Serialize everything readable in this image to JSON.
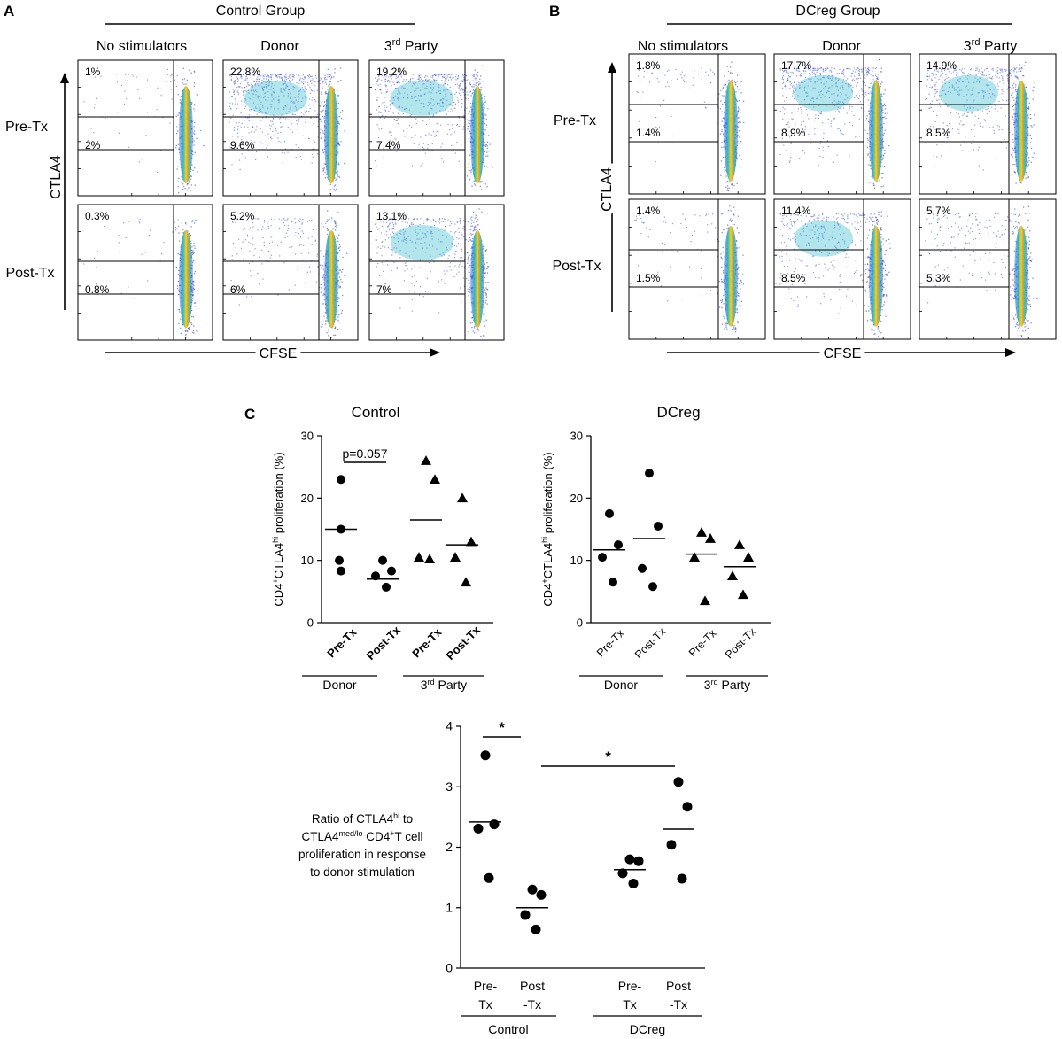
{
  "panels": {
    "A": {
      "letter": "A",
      "group_title": "Control Group",
      "columns": [
        "No stimulators",
        "Donor",
        "3rd Party"
      ],
      "rows": [
        "Pre-Tx",
        "Post-Tx"
      ],
      "y_axis": "CTLA4",
      "x_axis": "CFSE",
      "gates": [
        [
          {
            "hi": "1%",
            "med": "2%"
          },
          {
            "hi": "22.8%",
            "med": "9.6%"
          },
          {
            "hi": "19.2%",
            "med": "7.4%"
          }
        ],
        [
          {
            "hi": "0.3%",
            "med": "0.8%"
          },
          {
            "hi": "5.2%",
            "med": "6%"
          },
          {
            "hi": "13.1%",
            "med": "7%"
          }
        ]
      ]
    },
    "B": {
      "letter": "B",
      "group_title": "DCreg Group",
      "columns": [
        "No stimulators",
        "Donor",
        "3rd Party"
      ],
      "rows": [
        "Pre-Tx",
        "Post-Tx"
      ],
      "y_axis": "CTLA4",
      "x_axis": "CFSE",
      "gates": [
        [
          {
            "hi": "1.8%",
            "med": "1.4%"
          },
          {
            "hi": "17.7%",
            "med": "8.9%"
          },
          {
            "hi": "14.9%",
            "med": "8.5%"
          }
        ],
        [
          {
            "hi": "1.4%",
            "med": "1.5%"
          },
          {
            "hi": "11.4%",
            "med": "8.5%"
          },
          {
            "hi": "5.7%",
            "med": "5.3%"
          }
        ]
      ]
    },
    "C": {
      "letter": "C"
    }
  },
  "chart_data": [
    {
      "type": "scatter",
      "title": "Control",
      "ylabel": "CD4+CTLA4hi proliferation (%)",
      "ylim": [
        0,
        30
      ],
      "yticks": [
        "0",
        "10",
        "20",
        "30"
      ],
      "categories": [
        "Pre-Tx",
        "Post-Tx",
        "Pre-Tx",
        "Post-Tx"
      ],
      "group_labels": [
        "Donor",
        "3rd Party"
      ],
      "series": [
        {
          "name": "Donor Pre-Tx",
          "marker": "circle",
          "values": [
            23,
            15,
            10,
            8.3
          ],
          "mean": 15
        },
        {
          "name": "Donor Post-Tx",
          "marker": "circle",
          "values": [
            10,
            8.3,
            7.5,
            5.7
          ],
          "mean": 7
        },
        {
          "name": "3rd Party Pre-Tx",
          "marker": "triangle",
          "values": [
            26,
            23,
            10.5,
            10.2
          ],
          "mean": 16.5
        },
        {
          "name": "3rd Party Post-Tx",
          "marker": "triangle",
          "values": [
            20,
            13,
            10.5,
            6.5
          ],
          "mean": 12.5
        }
      ],
      "annotations": [
        {
          "text": "p=0.057",
          "between": [
            0,
            1
          ]
        }
      ]
    },
    {
      "type": "scatter",
      "title": "DCreg",
      "ylabel": "CD4+CTLA4hi proliferation (%)",
      "ylim": [
        0,
        30
      ],
      "yticks": [
        "0",
        "10",
        "20",
        "30"
      ],
      "categories": [
        "Pre-Tx",
        "Post-Tx",
        "Pre-Tx",
        "Post-Tx"
      ],
      "group_labels": [
        "Donor",
        "3rd Party"
      ],
      "series": [
        {
          "name": "Donor Pre-Tx",
          "marker": "circle",
          "values": [
            17.5,
            12.5,
            10.5,
            6.5
          ],
          "mean": 11.7
        },
        {
          "name": "Donor Post-Tx",
          "marker": "circle",
          "values": [
            24,
            15.5,
            8.7,
            5.8
          ],
          "mean": 13.5
        },
        {
          "name": "3rd Party Pre-Tx",
          "marker": "triangle",
          "values": [
            14.5,
            13.5,
            10.5,
            3.5
          ],
          "mean": 11
        },
        {
          "name": "3rd Party Post-Tx",
          "marker": "triangle",
          "values": [
            12.5,
            10.5,
            7.5,
            4.5
          ],
          "mean": 9
        }
      ]
    },
    {
      "type": "scatter",
      "ylabel": "Ratio of CTLA4hi to CTLA4med/lo CD4+T cell proliferation in response to donor stimulation",
      "ylim": [
        0,
        4
      ],
      "yticks": [
        "0",
        "1",
        "2",
        "3",
        "4"
      ],
      "categories": [
        "Pre-Tx",
        "Post-Tx",
        "Pre-Tx",
        "Post-Tx"
      ],
      "group_labels": [
        "Control",
        "DCreg"
      ],
      "series": [
        {
          "name": "Control Pre-Tx",
          "marker": "circle",
          "values": [
            3.52,
            2.38,
            2.31,
            1.49
          ],
          "mean": 2.42
        },
        {
          "name": "Control Post-Tx",
          "marker": "circle",
          "values": [
            1.3,
            1.21,
            0.88,
            0.64
          ],
          "mean": 1.0
        },
        {
          "name": "DCreg Pre-Tx",
          "marker": "circle",
          "values": [
            1.8,
            1.77,
            1.57,
            1.4
          ],
          "mean": 1.63
        },
        {
          "name": "DCreg Post-Tx",
          "marker": "circle",
          "values": [
            3.08,
            2.67,
            2.04,
            1.48
          ],
          "mean": 2.3
        }
      ],
      "annotations": [
        {
          "text": "*",
          "between": [
            0,
            1
          ]
        },
        {
          "text": "*",
          "between": [
            1,
            3
          ]
        }
      ]
    }
  ]
}
